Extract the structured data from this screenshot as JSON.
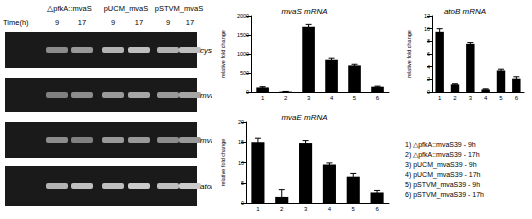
{
  "gel": {
    "strains": [
      "△pfkA::mvaS",
      "pUCM_mvaS",
      "pSTVM_mvaS"
    ],
    "time_label": "Time(h)",
    "times": [
      "9",
      "17"
    ],
    "genes": [
      "cysG",
      "mvaS",
      "mvaE",
      "atoB"
    ]
  },
  "chart_data": [
    {
      "type": "bar",
      "title": "mvaS mRNA",
      "y_label": "relative fold change",
      "categories": [
        "1",
        "2",
        "3",
        "4",
        "5",
        "6"
      ],
      "values": [
        120,
        10,
        1720,
        850,
        700,
        140
      ],
      "errors": [
        20,
        5,
        60,
        40,
        30,
        15
      ],
      "color": "#000000",
      "ylim": [
        0,
        2000
      ],
      "yticks": [
        0,
        500,
        1000,
        1500,
        2000
      ]
    },
    {
      "type": "bar",
      "title": "atoB mRNA",
      "y_label": "relative fold change",
      "categories": [
        "1",
        "2",
        "3",
        "4",
        "5",
        "6"
      ],
      "values": [
        9.5,
        1.2,
        7.6,
        0.4,
        3.4,
        2.1
      ],
      "errors": [
        0.5,
        0.1,
        0.2,
        0.1,
        0.2,
        0.3
      ],
      "color": "#000000",
      "ylim": [
        0,
        12
      ],
      "yticks": [
        0,
        2,
        4,
        6,
        8,
        10,
        12
      ]
    },
    {
      "type": "bar",
      "title": "mvaE mRNA",
      "y_label": "relative fold change",
      "categories": [
        "1",
        "2",
        "3",
        "4",
        "5",
        "6"
      ],
      "values": [
        15,
        1.5,
        14.8,
        9.5,
        6.5,
        2.6
      ],
      "errors": [
        1.0,
        1.8,
        0.6,
        0.4,
        0.8,
        0.5
      ],
      "color": "#000000",
      "ylim": [
        0,
        20
      ],
      "yticks": [
        0,
        5,
        10,
        15,
        20
      ]
    }
  ],
  "key": [
    "1) △pfkA::mvaS39 - 9h",
    "2) △pfkA::mvaS39 - 17h",
    "3) pUCM_mvaS39 - 9h",
    "4) pUCM_mvaS39 - 17h",
    "5) pSTVM_mvaS39 - 9h",
    "6) pSTVM_mvaS39 - 17h"
  ]
}
